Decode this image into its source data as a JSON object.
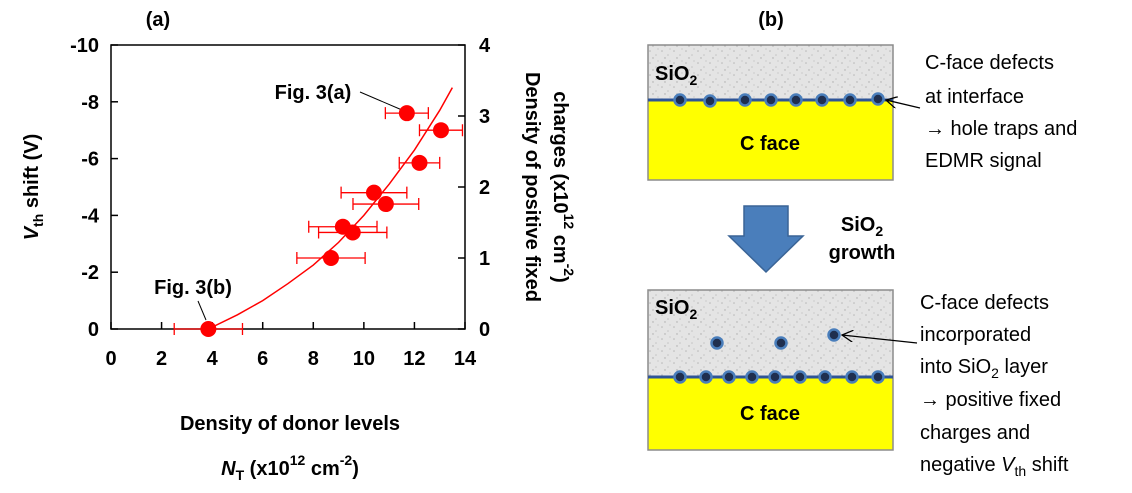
{
  "chart_data": {
    "type": "scatter",
    "title": "(a)",
    "x_label": {
      "line1": "Density of donor levels",
      "symbol": "N",
      "sub": "T",
      "a": " (x10",
      "sup": "12",
      "b": " cm",
      "sup2": "-2",
      "c": ")"
    },
    "y_label": {
      "symbol": "V",
      "sub": "th",
      "rest": " shift (V)"
    },
    "y2_label": {
      "line1": "Density of positive fixed",
      "a": "charges (x10",
      "sup": "12",
      "b": " cm",
      "sup2": "-2",
      "c": ")"
    },
    "xlim": [
      0,
      14
    ],
    "xticks": [
      0,
      2,
      4,
      6,
      8,
      10,
      12,
      14
    ],
    "ylim": [
      0,
      -10
    ],
    "yticks": [
      0,
      -2,
      -4,
      -6,
      -8,
      -10
    ],
    "y2lim": [
      0,
      4
    ],
    "y2ticks": [
      0,
      1,
      2,
      3,
      4
    ],
    "series": [
      {
        "color": "#ff0000",
        "x": [
          3.85,
          8.7,
          9.17,
          9.56,
          10.4,
          10.87,
          12.2,
          11.7,
          13.05
        ],
        "values": [
          0,
          -2.5,
          -3.6,
          -3.4,
          -4.8,
          -4.4,
          -5.85,
          -7.6,
          -7.0
        ],
        "xerr": [
          1.35,
          1.35,
          1.35,
          1.35,
          1.3,
          1.3,
          0.8,
          0.85,
          0.85
        ]
      }
    ],
    "fit": {
      "color": "#ff0000",
      "x": [
        3.85,
        5,
        6,
        7,
        8,
        9,
        10,
        11,
        12,
        13,
        13.5
      ],
      "values": [
        0,
        -0.5,
        -1.0,
        -1.6,
        -2.25,
        -3.05,
        -4.0,
        -5.1,
        -6.3,
        -7.7,
        -8.5
      ]
    },
    "annotations": [
      "Fig. 3(a)",
      "Fig. 3(b)"
    ]
  },
  "diagram": {
    "label": "(b)",
    "top": {
      "oxide": {
        "base": "SiO",
        "sub": "2"
      },
      "substrate": "C face",
      "note": [
        "C-face defects",
        "at interface",
        "→ hole traps and",
        "EDMR signal"
      ]
    },
    "arrow": {
      "line1": {
        "base": "SiO",
        "sub": "2"
      },
      "line2": "growth"
    },
    "bottom": {
      "oxide": {
        "base": "SiO",
        "sub": "2"
      },
      "substrate": "C face",
      "note": [
        "C-face defects",
        "incorporated",
        {
          "a": "into SiO",
          "sub": "2",
          "b": " layer"
        },
        "→ positive fixed",
        "charges and",
        {
          "a": "negative ",
          "symbol": "V",
          "sub": "th",
          "b": " shift"
        }
      ]
    }
  }
}
